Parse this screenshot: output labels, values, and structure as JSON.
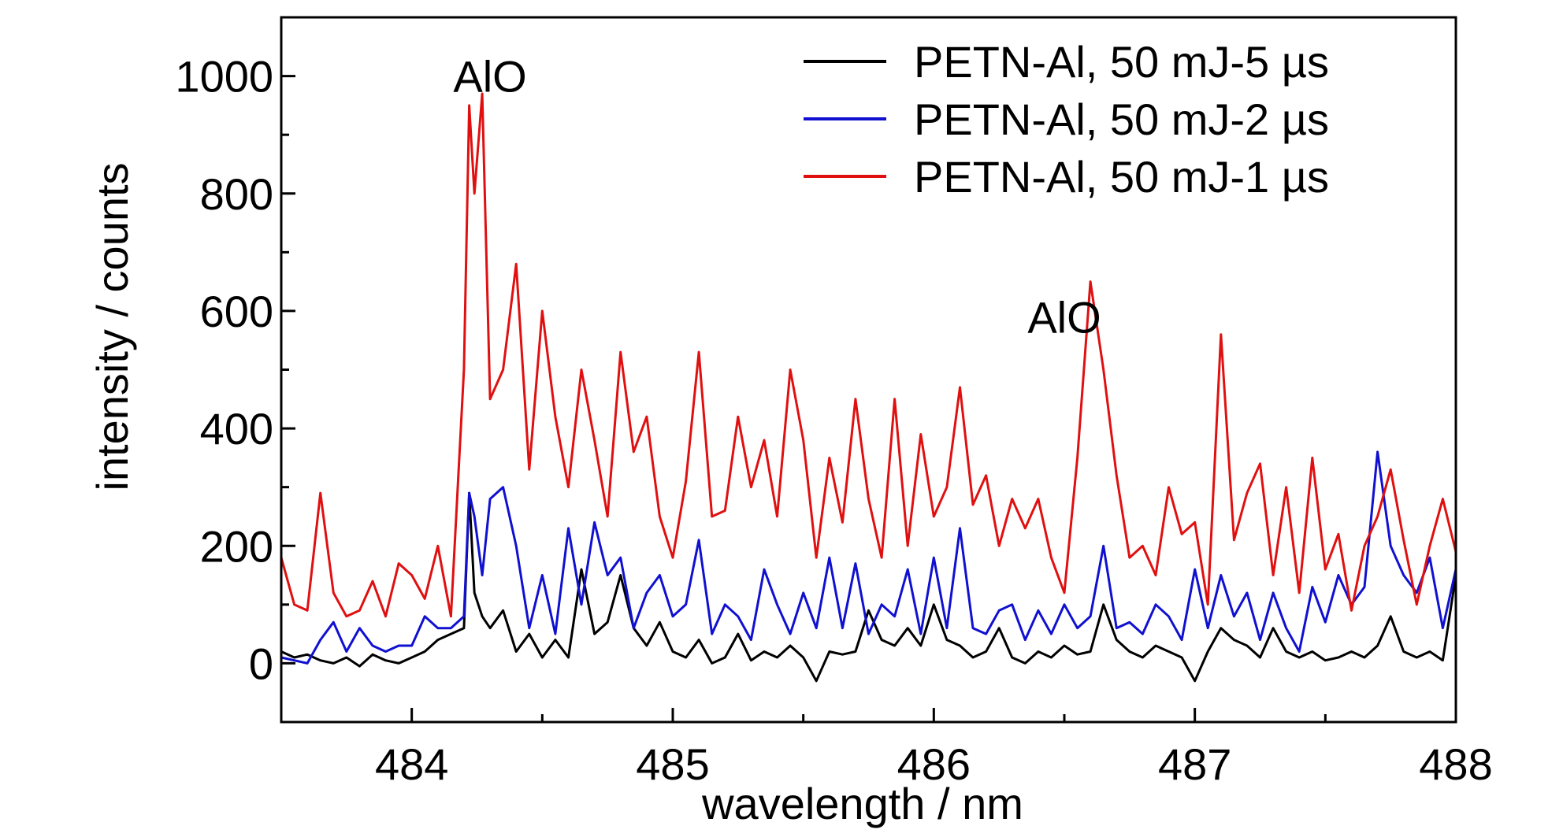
{
  "chart_data": {
    "type": "line",
    "xlabel": "wavelength / nm",
    "ylabel": "intensity / counts",
    "xlim": [
      483.5,
      488.0
    ],
    "ylim": [
      -100,
      1100
    ],
    "xticks": [
      484,
      485,
      486,
      487,
      488
    ],
    "yticks": [
      0,
      200,
      400,
      600,
      800,
      1000
    ],
    "legend_position": "top-right",
    "annotations": [
      {
        "text": "AlO",
        "x": 484.3,
        "y": 1000
      },
      {
        "text": "AlO",
        "x": 486.5,
        "y": 590
      }
    ],
    "series": [
      {
        "name": "PETN-Al, 50 mJ-5 µs",
        "color": "#000000",
        "x": [
          483.5,
          483.55,
          483.6,
          483.65,
          483.7,
          483.75,
          483.8,
          483.85,
          483.9,
          483.95,
          484.0,
          484.05,
          484.1,
          484.15,
          484.2,
          484.22,
          484.24,
          484.27,
          484.3,
          484.35,
          484.4,
          484.45,
          484.5,
          484.55,
          484.6,
          484.65,
          484.7,
          484.75,
          484.8,
          484.85,
          484.9,
          484.95,
          485.0,
          485.05,
          485.1,
          485.15,
          485.2,
          485.25,
          485.3,
          485.35,
          485.4,
          485.45,
          485.5,
          485.55,
          485.6,
          485.65,
          485.7,
          485.75,
          485.8,
          485.85,
          485.9,
          485.95,
          486.0,
          486.05,
          486.1,
          486.15,
          486.2,
          486.25,
          486.3,
          486.35,
          486.4,
          486.45,
          486.5,
          486.55,
          486.6,
          486.65,
          486.7,
          486.75,
          486.8,
          486.85,
          486.9,
          486.95,
          487.0,
          487.05,
          487.1,
          487.15,
          487.2,
          487.25,
          487.3,
          487.35,
          487.4,
          487.45,
          487.5,
          487.55,
          487.6,
          487.65,
          487.7,
          487.75,
          487.8,
          487.85,
          487.9,
          487.95,
          488.0
        ],
        "y": [
          20,
          10,
          15,
          5,
          0,
          10,
          -5,
          15,
          5,
          0,
          10,
          20,
          40,
          50,
          60,
          290,
          120,
          80,
          60,
          90,
          20,
          50,
          10,
          40,
          10,
          160,
          50,
          70,
          150,
          60,
          30,
          70,
          20,
          10,
          40,
          0,
          10,
          50,
          5,
          20,
          10,
          30,
          10,
          -30,
          20,
          15,
          20,
          90,
          40,
          30,
          60,
          30,
          100,
          40,
          30,
          10,
          20,
          60,
          10,
          0,
          20,
          10,
          30,
          15,
          20,
          100,
          40,
          20,
          10,
          30,
          20,
          10,
          -30,
          20,
          60,
          40,
          30,
          10,
          60,
          20,
          10,
          20,
          5,
          10,
          20,
          10,
          30,
          80,
          20,
          10,
          20,
          5,
          150
        ]
      },
      {
        "name": "PETN-Al, 50 mJ-2 µs",
        "color": "#1010d0",
        "x": [
          483.5,
          483.55,
          483.6,
          483.65,
          483.7,
          483.75,
          483.8,
          483.85,
          483.9,
          483.95,
          484.0,
          484.05,
          484.1,
          484.15,
          484.2,
          484.22,
          484.24,
          484.27,
          484.3,
          484.35,
          484.4,
          484.45,
          484.5,
          484.55,
          484.6,
          484.65,
          484.7,
          484.75,
          484.8,
          484.85,
          484.9,
          484.95,
          485.0,
          485.05,
          485.1,
          485.15,
          485.2,
          485.25,
          485.3,
          485.35,
          485.4,
          485.45,
          485.5,
          485.55,
          485.6,
          485.65,
          485.7,
          485.75,
          485.8,
          485.85,
          485.9,
          485.95,
          486.0,
          486.05,
          486.1,
          486.15,
          486.2,
          486.25,
          486.3,
          486.35,
          486.4,
          486.45,
          486.5,
          486.55,
          486.6,
          486.65,
          486.7,
          486.75,
          486.8,
          486.85,
          486.9,
          486.95,
          487.0,
          487.05,
          487.1,
          487.15,
          487.2,
          487.25,
          487.3,
          487.35,
          487.4,
          487.45,
          487.5,
          487.55,
          487.6,
          487.65,
          487.7,
          487.75,
          487.8,
          487.85,
          487.9,
          487.95,
          488.0
        ],
        "y": [
          10,
          5,
          0,
          40,
          70,
          20,
          60,
          30,
          20,
          30,
          30,
          80,
          60,
          60,
          80,
          290,
          250,
          150,
          280,
          300,
          200,
          60,
          150,
          50,
          230,
          100,
          240,
          150,
          180,
          60,
          120,
          150,
          80,
          100,
          210,
          50,
          100,
          80,
          40,
          160,
          100,
          50,
          120,
          60,
          180,
          60,
          170,
          50,
          100,
          80,
          160,
          50,
          180,
          60,
          230,
          60,
          50,
          90,
          100,
          40,
          90,
          50,
          100,
          60,
          80,
          200,
          60,
          70,
          50,
          100,
          80,
          40,
          160,
          60,
          150,
          80,
          120,
          40,
          120,
          60,
          20,
          130,
          70,
          150,
          100,
          130,
          360,
          200,
          150,
          120,
          180,
          60,
          160
        ]
      },
      {
        "name": "PETN-Al, 50 mJ-1 µs",
        "color": "#e01010",
        "x": [
          483.5,
          483.55,
          483.6,
          483.65,
          483.7,
          483.75,
          483.8,
          483.85,
          483.9,
          483.95,
          484.0,
          484.05,
          484.1,
          484.15,
          484.2,
          484.22,
          484.24,
          484.27,
          484.3,
          484.35,
          484.4,
          484.45,
          484.5,
          484.55,
          484.6,
          484.65,
          484.7,
          484.75,
          484.8,
          484.85,
          484.9,
          484.95,
          485.0,
          485.05,
          485.1,
          485.15,
          485.2,
          485.25,
          485.3,
          485.35,
          485.4,
          485.45,
          485.5,
          485.55,
          485.6,
          485.65,
          485.7,
          485.75,
          485.8,
          485.85,
          485.9,
          485.95,
          486.0,
          486.05,
          486.1,
          486.15,
          486.2,
          486.25,
          486.3,
          486.35,
          486.4,
          486.45,
          486.5,
          486.55,
          486.6,
          486.65,
          486.7,
          486.75,
          486.8,
          486.85,
          486.9,
          486.95,
          487.0,
          487.05,
          487.1,
          487.15,
          487.2,
          487.25,
          487.3,
          487.35,
          487.4,
          487.45,
          487.5,
          487.55,
          487.6,
          487.65,
          487.7,
          487.75,
          487.8,
          487.85,
          487.9,
          487.95,
          488.0
        ],
        "y": [
          180,
          100,
          90,
          290,
          120,
          80,
          90,
          140,
          80,
          170,
          150,
          110,
          200,
          80,
          500,
          950,
          800,
          970,
          450,
          500,
          680,
          330,
          600,
          420,
          300,
          500,
          380,
          250,
          530,
          360,
          420,
          250,
          180,
          310,
          530,
          250,
          260,
          420,
          300,
          380,
          250,
          500,
          380,
          180,
          350,
          240,
          450,
          280,
          180,
          450,
          200,
          390,
          250,
          300,
          470,
          270,
          320,
          200,
          280,
          230,
          280,
          180,
          120,
          350,
          650,
          500,
          320,
          180,
          200,
          150,
          300,
          220,
          240,
          100,
          560,
          210,
          290,
          340,
          150,
          300,
          120,
          350,
          160,
          220,
          90,
          200,
          250,
          330,
          210,
          100,
          200,
          280,
          190
        ]
      }
    ]
  }
}
